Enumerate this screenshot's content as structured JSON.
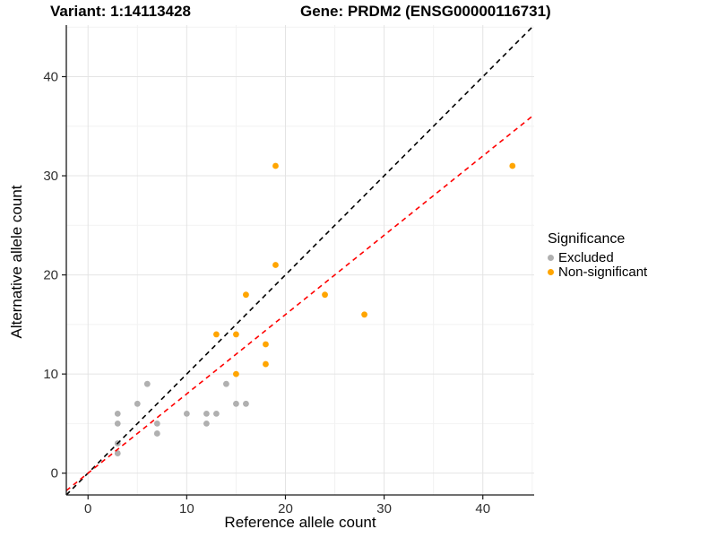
{
  "titles": {
    "variant": "Variant: 1:14113428",
    "gene": "Gene: PRDM2 (ENSG00000116731)"
  },
  "chart_data": {
    "type": "scatter",
    "xlabel": "Reference allele count",
    "ylabel": "Alternative allele count",
    "xlim": [
      -2.2,
      45.2
    ],
    "ylim": [
      -2.2,
      45.2
    ],
    "x_ticks": [
      0,
      10,
      20,
      30,
      40
    ],
    "y_ticks": [
      0,
      10,
      20,
      30,
      40
    ],
    "x_minor_ticks": [
      5,
      15,
      25,
      35,
      45
    ],
    "y_minor_ticks": [
      5,
      15,
      25,
      35,
      45
    ],
    "grid": "major+minor",
    "legend_title": "Significance",
    "legend_position": "right",
    "series": [
      {
        "name": "Excluded",
        "color": "#b0b0b0",
        "points": [
          [
            3,
            2
          ],
          [
            3,
            3
          ],
          [
            3,
            5
          ],
          [
            3,
            6
          ],
          [
            5,
            7
          ],
          [
            6,
            9
          ],
          [
            7,
            4
          ],
          [
            7,
            5
          ],
          [
            10,
            6
          ],
          [
            12,
            5
          ],
          [
            12,
            6
          ],
          [
            13,
            6
          ],
          [
            14,
            9
          ],
          [
            15,
            7
          ],
          [
            16,
            7
          ]
        ]
      },
      {
        "name": "Non-significant",
        "color": "#FFA500",
        "points": [
          [
            13,
            14
          ],
          [
            15,
            10
          ],
          [
            15,
            14
          ],
          [
            16,
            18
          ],
          [
            18,
            11
          ],
          [
            18,
            13
          ],
          [
            19,
            21
          ],
          [
            19,
            31
          ],
          [
            24,
            18
          ],
          [
            28,
            16
          ],
          [
            43,
            31
          ]
        ]
      }
    ],
    "lines": [
      {
        "name": "identity-line",
        "slope": 1,
        "intercept": 0,
        "color": "#000000",
        "style": "dashed"
      },
      {
        "name": "ratio-line",
        "slope": 0.8,
        "intercept": 0,
        "color": "#FF0000",
        "style": "dashed"
      }
    ]
  },
  "style_colors": {
    "grid_major": "#e4e4e4",
    "grid_minor": "#f2f2f2",
    "axis_line": "#1a1a1a",
    "tick_label": "#303030"
  }
}
